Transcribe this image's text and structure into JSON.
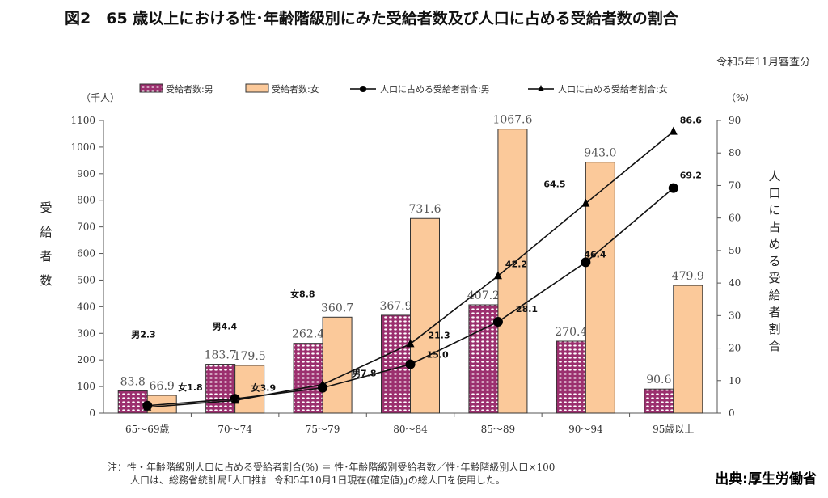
{
  "title": "図2　65 歳以上における性･年齢階級別にみた受給者数及び人口に占める受給者数の割合",
  "subtitle": "令和5年11月審査分",
  "notes": [
    "注：性・年齢階級別人口に占める受給者割合(%) ＝ 性･年齢階級別受給者数／性･年齢階級別人口×100",
    "人口は、総務省統計局｢人口推計 令和5年10月1日現在(確定値)｣の総人口を使用した。"
  ],
  "source": "出典:厚生労働省",
  "chart_data": {
    "type": "bar+line",
    "categories": [
      "65～69歳",
      "70～74",
      "75～79",
      "80～84",
      "85～89",
      "90～94",
      "95歳以上"
    ],
    "series": [
      {
        "name": "受給者数:男",
        "type": "bar",
        "axis": "left",
        "color": "#9b2f6e",
        "values": [
          83.8,
          183.7,
          262.4,
          367.9,
          407.2,
          270.4,
          90.6
        ]
      },
      {
        "name": "受給者数:女",
        "type": "bar",
        "axis": "left",
        "color": "#fbc99a",
        "values": [
          66.9,
          179.5,
          360.7,
          731.6,
          1067.6,
          943.0,
          479.9
        ]
      },
      {
        "name": "人口に占める受給者割合:男",
        "type": "line",
        "axis": "right",
        "marker": "circle",
        "label_prefix": "男",
        "values": [
          2.3,
          4.4,
          7.8,
          15.0,
          28.1,
          46.4,
          69.2
        ]
      },
      {
        "name": "人口に占める受給者割合:女",
        "type": "line",
        "axis": "right",
        "marker": "triangle",
        "label_prefix": "女",
        "values": [
          1.8,
          3.9,
          8.8,
          21.3,
          42.2,
          64.5,
          86.6
        ]
      }
    ],
    "ylabel": "受給者数",
    "yunit": "（千人）",
    "ylim": [
      0,
      1100
    ],
    "yticks": [
      0,
      100,
      200,
      300,
      400,
      500,
      600,
      700,
      800,
      900,
      1000,
      1100
    ],
    "y2label": "人口に占める受給者割合",
    "y2unit": "（%）",
    "y2lim": [
      0,
      90
    ],
    "y2ticks": [
      0,
      10,
      20,
      30,
      40,
      50,
      60,
      70,
      80,
      90
    ],
    "legend": "top"
  }
}
